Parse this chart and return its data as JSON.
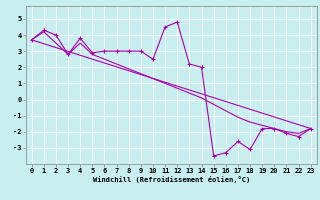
{
  "bg_color": "#c8eef0",
  "line_color": "#aa00aa",
  "xlim": [
    -0.5,
    23.5
  ],
  "ylim": [
    -4.0,
    5.8
  ],
  "xticks": [
    0,
    1,
    2,
    3,
    4,
    5,
    6,
    7,
    8,
    9,
    10,
    11,
    12,
    13,
    14,
    15,
    16,
    17,
    18,
    19,
    20,
    21,
    22,
    23
  ],
  "yticks": [
    -3,
    -2,
    -1,
    0,
    1,
    2,
    3,
    4,
    5
  ],
  "xlabel": "Windchill (Refroidissement éolien,°C)",
  "series1_x": [
    0,
    1,
    2,
    3,
    4,
    5,
    6,
    7,
    8,
    9,
    10,
    11,
    12,
    13,
    14,
    15,
    16,
    17,
    18,
    19,
    20,
    21,
    22,
    23
  ],
  "series1_y": [
    3.7,
    4.3,
    4.0,
    2.8,
    3.8,
    2.9,
    3.0,
    3.0,
    3.0,
    3.0,
    2.5,
    4.5,
    4.8,
    2.2,
    2.0,
    -3.5,
    -3.3,
    -2.6,
    -3.1,
    -1.8,
    -1.8,
    -2.1,
    -2.3,
    -1.8
  ],
  "series2_x": [
    0,
    23
  ],
  "series2_y": [
    3.7,
    -1.8
  ],
  "series3_x": [
    0,
    1,
    2,
    3,
    4,
    5,
    6,
    7,
    8,
    9,
    10,
    11,
    12,
    13,
    14,
    15,
    16,
    17,
    18,
    19,
    20,
    21,
    22,
    23
  ],
  "series3_y": [
    3.7,
    4.2,
    3.5,
    2.8,
    3.5,
    2.8,
    2.5,
    2.2,
    1.9,
    1.6,
    1.3,
    1.0,
    0.7,
    0.4,
    0.1,
    -0.3,
    -0.7,
    -1.1,
    -1.4,
    -1.6,
    -1.8,
    -2.0,
    -2.1,
    -1.8
  ]
}
